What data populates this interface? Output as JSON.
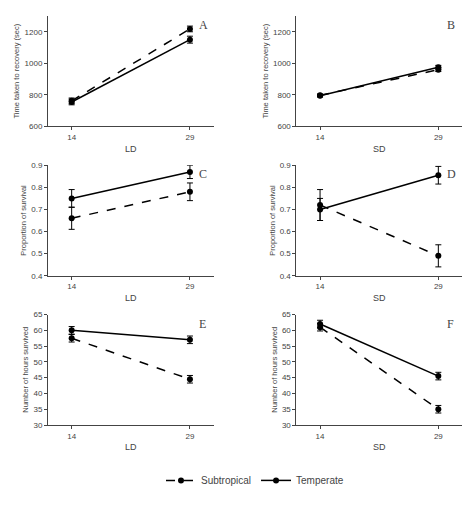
{
  "chart_data": [
    {
      "type": "line",
      "annotations": [
        "A"
      ],
      "x_label": "LD",
      "y_label": "Time taken to recovery (sec)",
      "xlim": [
        11,
        32
      ],
      "ylim": [
        600,
        1300
      ],
      "xticks": [
        14,
        29
      ],
      "yticks": [
        600,
        800,
        1000,
        1200
      ],
      "grid": false,
      "legend": "bottom",
      "series": [
        {
          "name": "Subtropical",
          "color": "#000000",
          "line_style": "dashed",
          "marker": "circle",
          "x": [
            14,
            29
          ],
          "values": [
            762,
            1218
          ],
          "errors": [
            18,
            18
          ]
        },
        {
          "name": "Temperate",
          "color": "#000000",
          "line_style": "solid",
          "marker": "circle",
          "x": [
            14,
            29
          ],
          "values": [
            755,
            1150
          ],
          "errors": [
            18,
            22
          ]
        }
      ]
    },
    {
      "type": "line",
      "annotations": [
        "B"
      ],
      "x_label": "SD",
      "y_label": "Time taken to recovery (sec)",
      "xlim": [
        11,
        32
      ],
      "ylim": [
        600,
        1300
      ],
      "xticks": [
        14,
        29
      ],
      "yticks": [
        600,
        800,
        1000,
        1200
      ],
      "grid": false,
      "legend": "bottom",
      "series": [
        {
          "name": "Subtropical",
          "color": "#000000",
          "line_style": "dashed",
          "marker": "circle",
          "x": [
            14,
            29
          ],
          "values": [
            797,
            960
          ],
          "errors": [
            8,
            12
          ]
        },
        {
          "name": "Temperate",
          "color": "#000000",
          "line_style": "solid",
          "marker": "circle",
          "x": [
            14,
            29
          ],
          "values": [
            795,
            975
          ],
          "errors": [
            8,
            12
          ]
        }
      ]
    },
    {
      "type": "line",
      "annotations": [
        "C"
      ],
      "x_label": "LD",
      "y_label": "Proportion of survival",
      "xlim": [
        11,
        32
      ],
      "ylim": [
        0.4,
        0.9
      ],
      "xticks": [
        14,
        29
      ],
      "yticks": [
        0.4,
        0.5,
        0.6,
        0.7,
        0.8,
        0.9
      ],
      "grid": false,
      "legend": "bottom",
      "series": [
        {
          "name": "Subtropical",
          "color": "#000000",
          "line_style": "dashed",
          "marker": "circle",
          "x": [
            14,
            29
          ],
          "values": [
            0.66,
            0.78
          ],
          "errors": [
            0.05,
            0.04
          ]
        },
        {
          "name": "Temperate",
          "color": "#000000",
          "line_style": "solid",
          "marker": "circle",
          "x": [
            14,
            29
          ],
          "values": [
            0.75,
            0.87
          ],
          "errors": [
            0.04,
            0.03
          ]
        }
      ]
    },
    {
      "type": "line",
      "annotations": [
        "D"
      ],
      "x_label": "SD",
      "y_label": "Proportion of survival",
      "xlim": [
        11,
        32
      ],
      "ylim": [
        0.4,
        0.9
      ],
      "xticks": [
        14,
        29
      ],
      "yticks": [
        0.4,
        0.5,
        0.6,
        0.7,
        0.8,
        0.9
      ],
      "grid": false,
      "legend": "bottom",
      "series": [
        {
          "name": "Subtropical",
          "color": "#000000",
          "line_style": "dashed",
          "marker": "circle",
          "x": [
            14,
            29
          ],
          "values": [
            0.72,
            0.49
          ],
          "errors": [
            0.07,
            0.05
          ]
        },
        {
          "name": "Temperate",
          "color": "#000000",
          "line_style": "solid",
          "marker": "circle",
          "x": [
            14,
            29
          ],
          "values": [
            0.7,
            0.855
          ],
          "errors": [
            0.05,
            0.04
          ]
        }
      ]
    },
    {
      "type": "line",
      "annotations": [
        "E"
      ],
      "x_label": "LD",
      "y_label": "Number of hours survived",
      "xlim": [
        11,
        32
      ],
      "ylim": [
        30,
        65
      ],
      "xticks": [
        14,
        29
      ],
      "yticks": [
        30,
        35,
        40,
        45,
        50,
        55,
        60,
        65
      ],
      "grid": false,
      "legend": "bottom",
      "series": [
        {
          "name": "Subtropical",
          "color": "#000000",
          "line_style": "dashed",
          "marker": "circle",
          "x": [
            14,
            29
          ],
          "values": [
            57.5,
            44.5
          ],
          "errors": [
            1.2,
            1.2
          ]
        },
        {
          "name": "Temperate",
          "color": "#000000",
          "line_style": "solid",
          "marker": "circle",
          "x": [
            14,
            29
          ],
          "values": [
            60,
            57
          ],
          "errors": [
            1.2,
            1.2
          ]
        }
      ]
    },
    {
      "type": "line",
      "annotations": [
        "F"
      ],
      "x_label": "SD",
      "y_label": "Number of hours survived",
      "xlim": [
        11,
        32
      ],
      "ylim": [
        30,
        65
      ],
      "xticks": [
        14,
        29
      ],
      "yticks": [
        30,
        35,
        40,
        45,
        50,
        55,
        60,
        65
      ],
      "grid": false,
      "legend": "bottom",
      "series": [
        {
          "name": "Subtropical",
          "color": "#000000",
          "line_style": "dashed",
          "marker": "circle",
          "x": [
            14,
            29
          ],
          "values": [
            61,
            35
          ],
          "errors": [
            1.2,
            1.2
          ]
        },
        {
          "name": "Temperate",
          "color": "#000000",
          "line_style": "solid",
          "marker": "circle",
          "x": [
            14,
            29
          ],
          "values": [
            62,
            45.5
          ],
          "errors": [
            1.2,
            1.2
          ]
        }
      ]
    }
  ]
}
